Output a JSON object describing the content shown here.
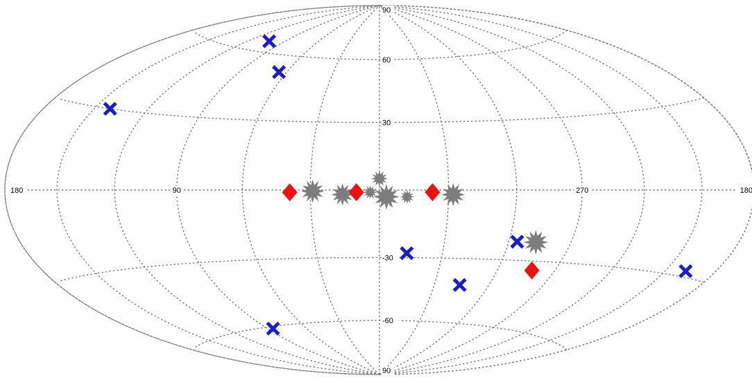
{
  "map": {
    "projection": "aitoff-hammer (galactic coordinates, all-sky)",
    "center_longitude": 0,
    "longitude_labels": [
      {
        "text": "180",
        "lon": 180,
        "side": "left"
      },
      {
        "text": "90",
        "lon": 90,
        "side": "center"
      },
      {
        "text": "270",
        "lon": 270,
        "side": "center"
      },
      {
        "text": "180",
        "lon": 180,
        "side": "right"
      }
    ],
    "latitude_labels": [
      {
        "text": "90",
        "lat": 90
      },
      {
        "text": "60",
        "lat": 60
      },
      {
        "text": "30",
        "lat": 30
      },
      {
        "text": "-30",
        "lat": -30
      },
      {
        "text": "-60",
        "lat": -60
      },
      {
        "text": "90",
        "lat": -90
      }
    ],
    "graticule": {
      "meridians_step_deg": 30,
      "parallels_step_deg": 30,
      "style": "dotted"
    },
    "colors": {
      "grid": "#7a7a7a",
      "x_marker": "#1c1cc8",
      "diamond_marker": "#ee1111",
      "star_marker": "#7d7d7d"
    },
    "markers": {
      "x_crosses": [
        {
          "lon": 103,
          "lat": 65
        },
        {
          "lon": 65,
          "lat": 52
        },
        {
          "lon": 141,
          "lat": 30
        },
        {
          "lon": 347,
          "lat": -28
        },
        {
          "lon": 316,
          "lat": -42
        },
        {
          "lon": 296,
          "lat": -22
        },
        {
          "lon": 198,
          "lat": -28
        },
        {
          "lon": 86,
          "lat": -61
        }
      ],
      "diamonds": [
        {
          "lon": 39,
          "lat": -1
        },
        {
          "lon": 10,
          "lat": -1
        },
        {
          "lon": 337,
          "lat": -1
        },
        {
          "lon": 282,
          "lat": -34
        }
      ],
      "stars": [
        {
          "lon": 29,
          "lat": -0.5,
          "size": 1.0
        },
        {
          "lon": 16,
          "lat": -2,
          "size": 0.95
        },
        {
          "lon": 0,
          "lat": 5,
          "size": 0.7
        },
        {
          "lon": 357,
          "lat": -3,
          "size": 1.1
        },
        {
          "lon": 348,
          "lat": -3,
          "size": 0.6
        },
        {
          "lon": 4,
          "lat": -1,
          "size": 0.6
        },
        {
          "lon": 328,
          "lat": -2,
          "size": 1.0
        },
        {
          "lon": 287,
          "lat": -22,
          "size": 1.05
        }
      ]
    }
  }
}
